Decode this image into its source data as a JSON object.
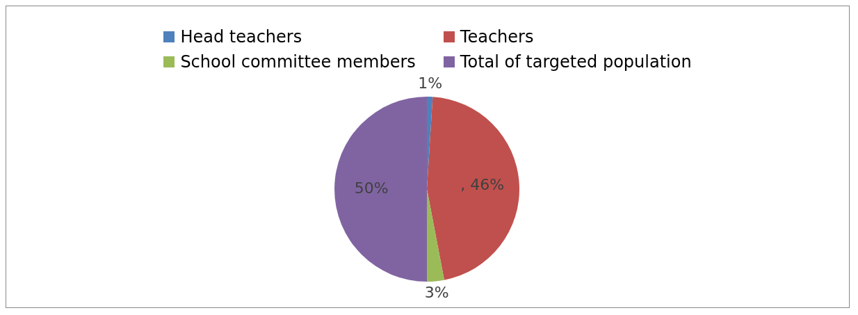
{
  "chart_data": {
    "type": "pie",
    "categories": [
      "Head teachers",
      "Teachers",
      "School committee members",
      "Total of targeted population"
    ],
    "values": [
      1,
      46,
      3,
      50
    ],
    "colors": [
      "#4f81bd",
      "#c0504d",
      "#9bbb59",
      "#8064a2"
    ],
    "value_labels": [
      "1%",
      ", 46%",
      "3%",
      "50%"
    ],
    "legend": "top"
  }
}
